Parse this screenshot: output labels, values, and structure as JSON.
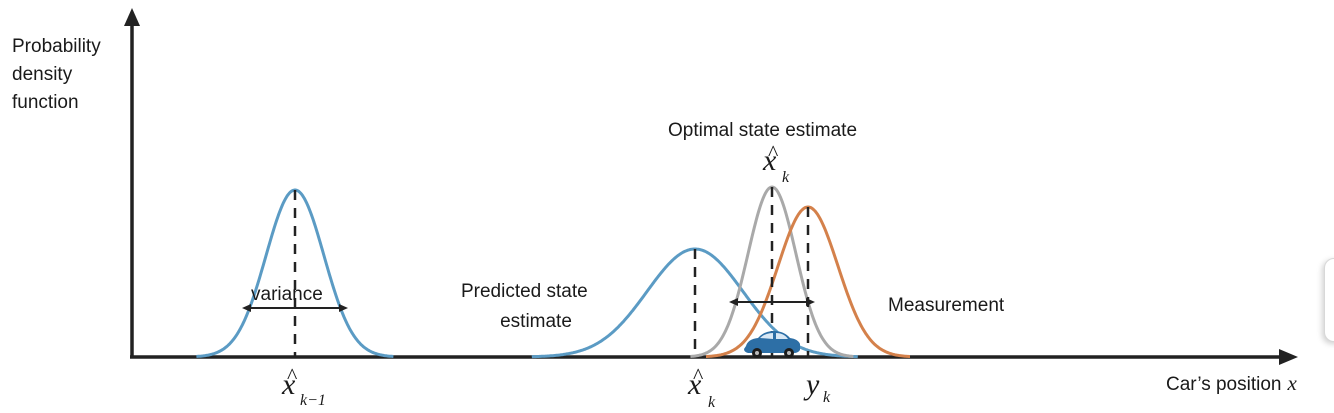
{
  "axes": {
    "ylabel_lines": [
      "Probability",
      "density",
      "function"
    ],
    "xlabel": "Car’s position",
    "xlabel_var": "x"
  },
  "labels": {
    "variance": "variance",
    "predicted_lines": [
      "Predicted state",
      "estimate"
    ],
    "optimal": "Optimal state estimate",
    "measurement": "Measurement"
  },
  "math": {
    "x_prev_base": "x",
    "x_prev_sub": "k−1",
    "x_pred_base": "x",
    "x_pred_sub": "k",
    "x_opt_base": "x",
    "x_opt_sub": "k",
    "y_base": "y",
    "y_sub": "k",
    "hat": "^"
  },
  "colors": {
    "previous_estimate": "#5b9bc4",
    "predicted_estimate": "#5b9bc4",
    "optimal_estimate": "#a9a9a9",
    "measurement": "#d4814b",
    "car": "#2d6fa6",
    "axis": "#222222"
  },
  "curves": [
    {
      "name": "previous-estimate",
      "mean": 295,
      "sd": 29,
      "peak": 167,
      "color": "#5b9bc4"
    },
    {
      "name": "predicted-estimate",
      "mean": 695,
      "sd": 48,
      "peak": 108,
      "color": "#5b9bc4"
    },
    {
      "name": "optimal-estimate",
      "mean": 772,
      "sd": 24,
      "peak": 170,
      "color": "#a9a9a9"
    },
    {
      "name": "measurement",
      "mean": 808,
      "sd": 30,
      "peak": 150,
      "color": "#d4814b"
    }
  ],
  "icons": {
    "car": "car-icon"
  }
}
